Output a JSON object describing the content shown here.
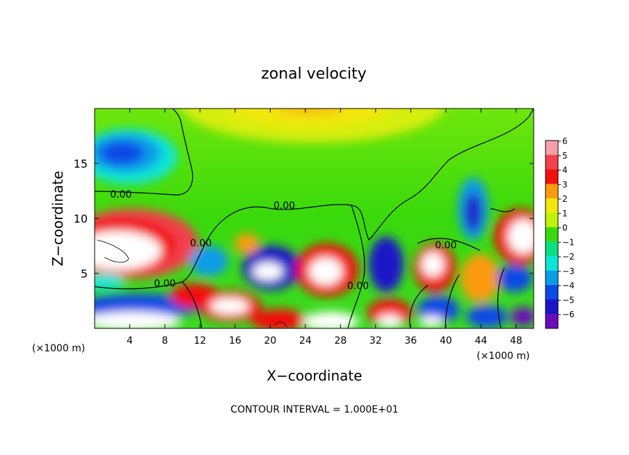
{
  "chart_data": {
    "type": "heatmap",
    "title": "zonal velocity",
    "xlabel": "X−coordinate",
    "ylabel": "Z−coordinate",
    "x_unit_left": "(×1000 m)",
    "x_unit_right": "(×1000 m)",
    "xlim": [
      0,
      50
    ],
    "ylim": [
      0,
      20
    ],
    "xticks": [
      4,
      8,
      12,
      16,
      20,
      24,
      28,
      32,
      36,
      40,
      44,
      48
    ],
    "xtick_labels": [
      "4",
      "8",
      "12",
      "16",
      "20",
      "24",
      "28",
      "32",
      "36",
      "40",
      "44",
      "48"
    ],
    "yticks": [
      5,
      10,
      15
    ],
    "ytick_labels": [
      "5",
      "10",
      "15"
    ],
    "grid": false,
    "colorbar": {
      "levels": [
        "6",
        "5",
        "4",
        "3",
        "2",
        "1",
        "0",
        "−1",
        "−2",
        "−3",
        "−4",
        "−5",
        "−6"
      ],
      "colors": [
        "#f5a0a8",
        "#f2404c",
        "#f2100c",
        "#fb9a10",
        "#f2e60c",
        "#bff20c",
        "#39d90c",
        "#0cde80",
        "#0ce6d6",
        "#0c9ce8",
        "#0c4ae6",
        "#1a16c8",
        "#6a0cb8"
      ]
    },
    "contour_labels": [
      {
        "text": "0.00",
        "x": 3.0,
        "y": 12.2
      },
      {
        "text": "0.00",
        "x": 8.0,
        "y": 4.1
      },
      {
        "text": "0.00",
        "x": 12.1,
        "y": 7.8
      },
      {
        "text": "0.00",
        "x": 21.6,
        "y": 11.2
      },
      {
        "text": "0.00",
        "x": 30.0,
        "y": 3.9
      },
      {
        "text": "0.00",
        "x": 40.0,
        "y": 7.6
      }
    ],
    "footer": "CONTOUR INTERVAL = 1.000E+01"
  }
}
